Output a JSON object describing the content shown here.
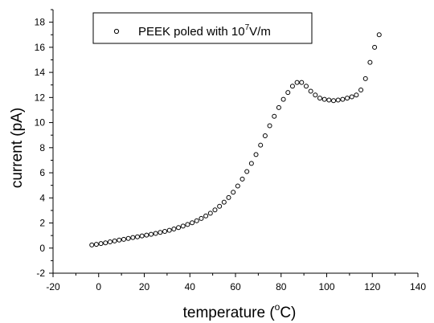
{
  "chart_data": {
    "type": "scatter",
    "xlabel": {
      "text": "temperature (",
      "sup": "o",
      "after": "C)"
    },
    "ylabel": "current (pA)",
    "xlim": [
      -20,
      140
    ],
    "ylim": [
      -2,
      19
    ],
    "xticks": [
      -20,
      0,
      20,
      40,
      60,
      80,
      100,
      120,
      140
    ],
    "yticks": [
      -2,
      0,
      2,
      4,
      6,
      8,
      10,
      12,
      14,
      16,
      18
    ],
    "legend": {
      "text": "PEEK poled with 10",
      "sup": "7",
      "after": "V/m",
      "position": "top-left"
    },
    "grid": false,
    "marker": "open-circle",
    "series": [
      {
        "name": "PEEK poled with 10^7V/m",
        "points": [
          [
            -3,
            0.25
          ],
          [
            -1,
            0.3
          ],
          [
            1,
            0.36
          ],
          [
            3,
            0.42
          ],
          [
            5,
            0.5
          ],
          [
            7,
            0.57
          ],
          [
            9,
            0.64
          ],
          [
            11,
            0.7
          ],
          [
            13,
            0.77
          ],
          [
            15,
            0.84
          ],
          [
            17,
            0.9
          ],
          [
            19,
            0.97
          ],
          [
            21,
            1.03
          ],
          [
            23,
            1.1
          ],
          [
            25,
            1.17
          ],
          [
            27,
            1.25
          ],
          [
            29,
            1.33
          ],
          [
            31,
            1.42
          ],
          [
            33,
            1.52
          ],
          [
            35,
            1.63
          ],
          [
            37,
            1.75
          ],
          [
            39,
            1.88
          ],
          [
            41,
            2.02
          ],
          [
            43,
            2.18
          ],
          [
            45,
            2.36
          ],
          [
            47,
            2.56
          ],
          [
            49,
            2.78
          ],
          [
            51,
            3.04
          ],
          [
            53,
            3.33
          ],
          [
            55,
            3.66
          ],
          [
            57,
            4.03
          ],
          [
            59,
            4.45
          ],
          [
            61,
            4.95
          ],
          [
            63,
            5.5
          ],
          [
            65,
            6.1
          ],
          [
            67,
            6.75
          ],
          [
            69,
            7.45
          ],
          [
            71,
            8.2
          ],
          [
            73,
            8.95
          ],
          [
            75,
            9.75
          ],
          [
            77,
            10.5
          ],
          [
            79,
            11.2
          ],
          [
            81,
            11.85
          ],
          [
            83,
            12.4
          ],
          [
            85,
            12.9
          ],
          [
            87,
            13.2
          ],
          [
            89,
            13.2
          ],
          [
            91,
            12.9
          ],
          [
            93,
            12.5
          ],
          [
            95,
            12.2
          ],
          [
            97,
            11.95
          ],
          [
            99,
            11.85
          ],
          [
            101,
            11.8
          ],
          [
            103,
            11.75
          ],
          [
            105,
            11.8
          ],
          [
            107,
            11.85
          ],
          [
            109,
            11.95
          ],
          [
            111,
            12.05
          ],
          [
            113,
            12.2
          ],
          [
            115,
            12.6
          ],
          [
            117,
            13.5
          ],
          [
            119,
            14.8
          ],
          [
            121,
            16.0
          ],
          [
            123,
            17.0
          ]
        ]
      }
    ]
  }
}
